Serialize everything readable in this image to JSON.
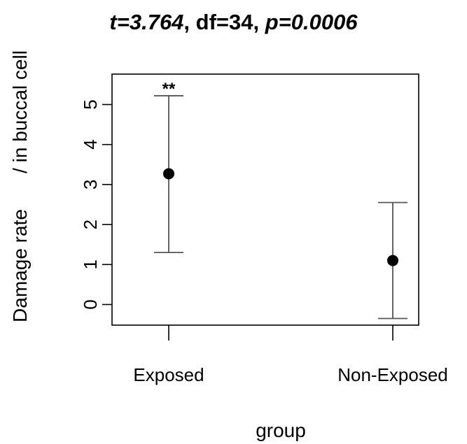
{
  "title": {
    "t_label": "t=",
    "t_value": "3.764",
    "df_text": ", df=34, ",
    "p_label": "p=",
    "p_value": "0.0006"
  },
  "chart_data": {
    "type": "scatter",
    "title": "t=3.764, df=34, p=0.0006",
    "xlabel": "group",
    "ylabel_parts": [
      "Damage rate",
      "/ in buccal cell"
    ],
    "categories": [
      "Exposed",
      "Non-Exposed"
    ],
    "means": [
      3.27,
      1.1
    ],
    "error_lower": [
      1.3,
      -0.35
    ],
    "error_upper": [
      5.22,
      2.55
    ],
    "significance": [
      "**",
      ""
    ],
    "yticks": [
      0,
      1,
      2,
      3,
      4,
      5
    ],
    "ylim": [
      -0.55,
      5.5
    ],
    "colors": {
      "line": "#555555",
      "point": "#000000",
      "frame": "#000000"
    }
  }
}
